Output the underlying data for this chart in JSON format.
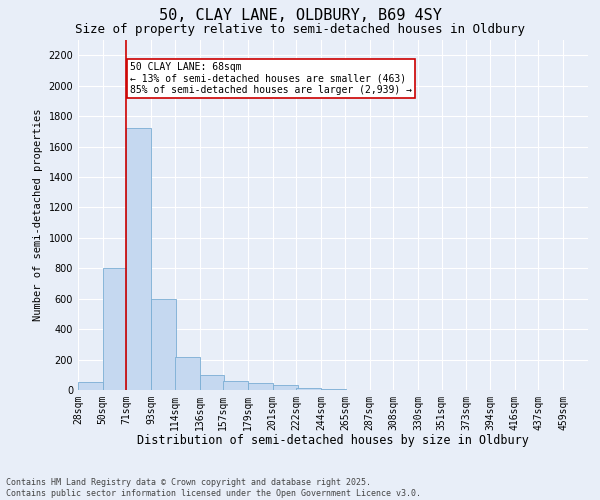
{
  "title1": "50, CLAY LANE, OLDBURY, B69 4SY",
  "title2": "Size of property relative to semi-detached houses in Oldbury",
  "xlabel": "Distribution of semi-detached houses by size in Oldbury",
  "ylabel": "Number of semi-detached properties",
  "bar_labels": [
    "28sqm",
    "50sqm",
    "71sqm",
    "93sqm",
    "114sqm",
    "136sqm",
    "157sqm",
    "179sqm",
    "201sqm",
    "222sqm",
    "244sqm",
    "265sqm",
    "287sqm",
    "308sqm",
    "330sqm",
    "351sqm",
    "373sqm",
    "394sqm",
    "416sqm",
    "437sqm",
    "459sqm"
  ],
  "bar_values": [
    50,
    800,
    1720,
    600,
    220,
    100,
    60,
    45,
    30,
    10,
    8,
    0,
    0,
    0,
    0,
    0,
    0,
    0,
    0,
    0,
    0
  ],
  "bar_color": "#c5d8f0",
  "bar_edge_color": "#7aadd4",
  "background_color": "#e8eef8",
  "grid_color": "#ffffff",
  "vline_color": "#cc0000",
  "annotation_text": "50 CLAY LANE: 68sqm\n← 13% of semi-detached houses are smaller (463)\n85% of semi-detached houses are larger (2,939) →",
  "annotation_box_color": "#ffffff",
  "annotation_border_color": "#cc0000",
  "ylim_max": 2300,
  "yticks": [
    0,
    200,
    400,
    600,
    800,
    1000,
    1200,
    1400,
    1600,
    1800,
    2000,
    2200
  ],
  "footnote": "Contains HM Land Registry data © Crown copyright and database right 2025.\nContains public sector information licensed under the Open Government Licence v3.0.",
  "title1_fontsize": 11,
  "title2_fontsize": 9,
  "xlabel_fontsize": 8.5,
  "ylabel_fontsize": 7.5,
  "tick_fontsize": 7,
  "annot_fontsize": 7,
  "footnote_fontsize": 6
}
